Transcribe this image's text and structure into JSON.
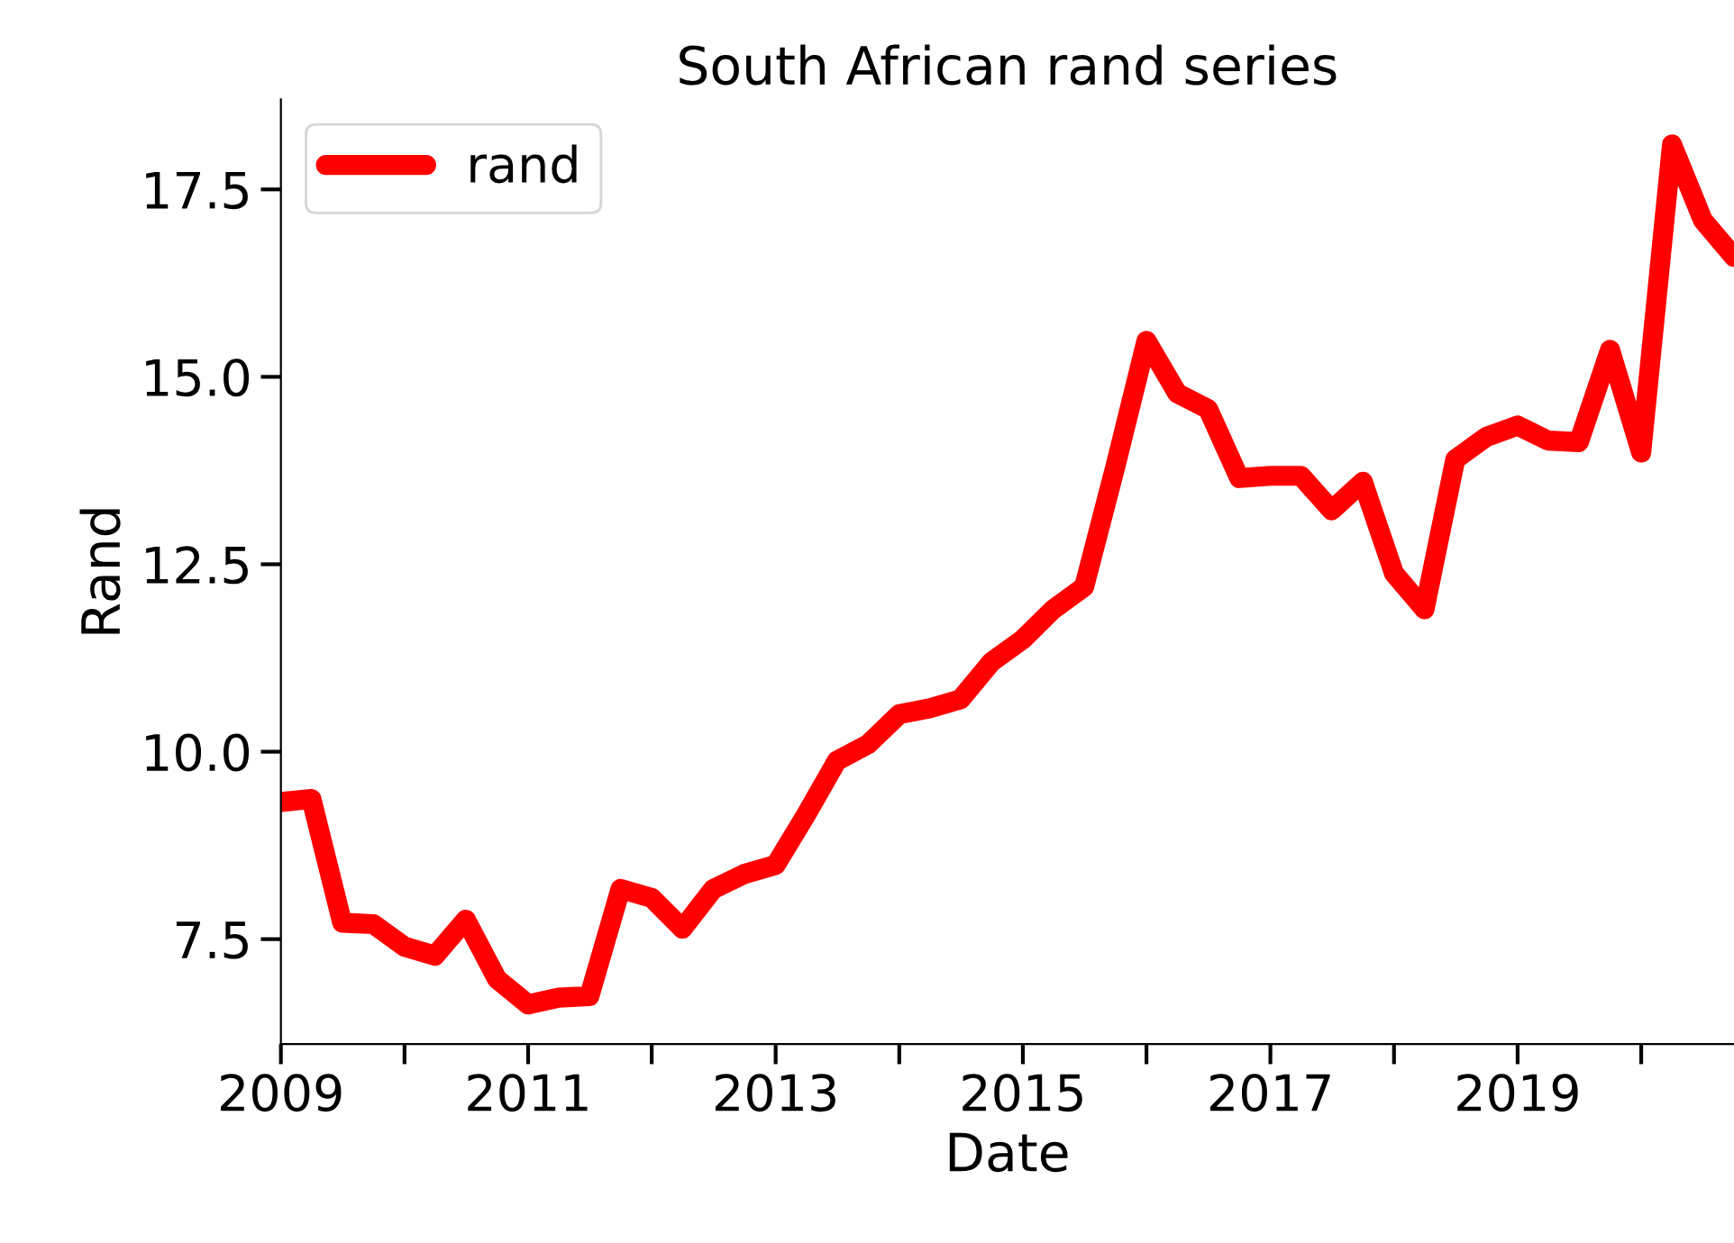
{
  "chart_data": {
    "type": "line",
    "title": "South African rand series",
    "xlabel": "Date",
    "ylabel": "Rand",
    "x": [
      "2009-01",
      "2009-04",
      "2009-07",
      "2009-10",
      "2010-01",
      "2010-04",
      "2010-07",
      "2010-10",
      "2011-01",
      "2011-04",
      "2011-07",
      "2011-10",
      "2012-01",
      "2012-04",
      "2012-07",
      "2012-10",
      "2013-01",
      "2013-04",
      "2013-07",
      "2013-10",
      "2014-01",
      "2014-04",
      "2014-07",
      "2014-10",
      "2015-01",
      "2015-04",
      "2015-07",
      "2015-10",
      "2016-01",
      "2016-04",
      "2016-07",
      "2016-10",
      "2017-01",
      "2017-04",
      "2017-07",
      "2017-10",
      "2018-01",
      "2018-04",
      "2018-07",
      "2018-10",
      "2019-01",
      "2019-04",
      "2019-07",
      "2019-10",
      "2020-01",
      "2020-04",
      "2020-07",
      "2020-10"
    ],
    "series": [
      {
        "name": "rand",
        "color": "#ff0000",
        "values": [
          9.33,
          9.37,
          7.72,
          7.7,
          7.4,
          7.28,
          7.76,
          6.97,
          6.63,
          6.72,
          6.74,
          8.17,
          8.05,
          7.64,
          8.17,
          8.37,
          8.49,
          9.16,
          9.88,
          10.1,
          10.5,
          10.58,
          10.7,
          11.2,
          11.5,
          11.9,
          12.2,
          13.8,
          15.48,
          14.78,
          14.57,
          13.65,
          13.68,
          13.68,
          13.22,
          13.6,
          12.38,
          11.9,
          13.9,
          14.2,
          14.35,
          14.15,
          14.13,
          15.36,
          13.99,
          18.1,
          17.09,
          16.6
        ]
      }
    ],
    "xlim": [
      "2009-01",
      "2020-10"
    ],
    "xticks": [
      {
        "value": "2009",
        "label": "2009"
      },
      {
        "value": "2010",
        "label": null
      },
      {
        "value": "2011",
        "label": "2011"
      },
      {
        "value": "2012",
        "label": null
      },
      {
        "value": "2013",
        "label": "2013"
      },
      {
        "value": "2014",
        "label": null
      },
      {
        "value": "2015",
        "label": "2015"
      },
      {
        "value": "2016",
        "label": null
      },
      {
        "value": "2017",
        "label": "2017"
      },
      {
        "value": "2018",
        "label": null
      },
      {
        "value": "2019",
        "label": "2019"
      },
      {
        "value": "2020",
        "label": null
      }
    ],
    "ylim": [
      6.1,
      18.7
    ],
    "yticks": [
      {
        "value": 7.5,
        "label": "7.5"
      },
      {
        "value": 10.0,
        "label": "10.0"
      },
      {
        "value": 12.5,
        "label": "12.5"
      },
      {
        "value": 15.0,
        "label": "15.0"
      },
      {
        "value": 17.5,
        "label": "17.5"
      }
    ],
    "grid": false,
    "legend": "top left",
    "line_style": "solid"
  }
}
